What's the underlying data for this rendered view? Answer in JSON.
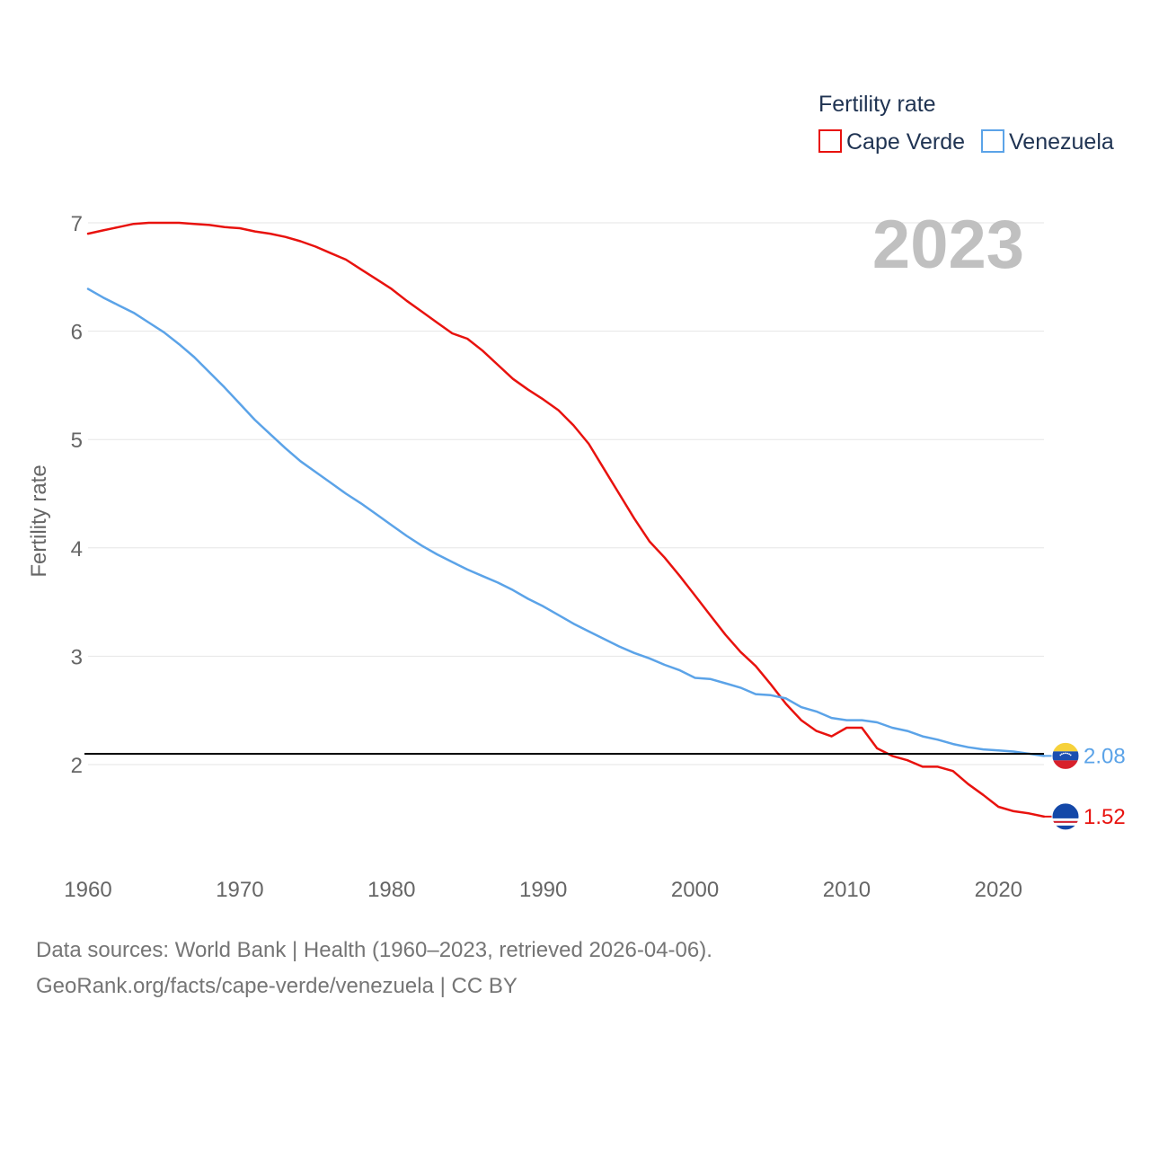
{
  "chart_data": {
    "type": "line",
    "ylabel": "Fertility rate",
    "legend_title": "Fertility rate",
    "legend_position": "top-right",
    "current_year_label": "2023",
    "xlim": [
      1960,
      2023
    ],
    "ylim": [
      1.05,
      7.2
    ],
    "x_ticks": [
      1960,
      1970,
      1980,
      1990,
      2000,
      2010,
      2020
    ],
    "y_ticks": [
      2,
      3,
      4,
      5,
      6,
      7
    ],
    "grid": true,
    "reference_line": {
      "value": 2.1,
      "color": "#000000"
    },
    "x": [
      1960,
      1961,
      1962,
      1963,
      1964,
      1965,
      1966,
      1967,
      1968,
      1969,
      1970,
      1971,
      1972,
      1973,
      1974,
      1975,
      1976,
      1977,
      1978,
      1979,
      1980,
      1981,
      1982,
      1983,
      1984,
      1985,
      1986,
      1987,
      1988,
      1989,
      1990,
      1991,
      1992,
      1993,
      1994,
      1995,
      1996,
      1997,
      1998,
      1999,
      2000,
      2001,
      2002,
      2003,
      2004,
      2005,
      2006,
      2007,
      2008,
      2009,
      2010,
      2011,
      2012,
      2013,
      2014,
      2015,
      2016,
      2017,
      2018,
      2019,
      2020,
      2021,
      2022,
      2023
    ],
    "series": [
      {
        "name": "Cape Verde",
        "color": "#e8120e",
        "end_label": "1.52",
        "values": [
          6.9,
          6.93,
          6.96,
          6.99,
          7.0,
          7.0,
          7.0,
          6.99,
          6.98,
          6.96,
          6.95,
          6.92,
          6.9,
          6.87,
          6.83,
          6.78,
          6.72,
          6.66,
          6.57,
          6.48,
          6.39,
          6.28,
          6.18,
          6.08,
          5.98,
          5.93,
          5.82,
          5.69,
          5.56,
          5.46,
          5.37,
          5.27,
          5.13,
          4.96,
          4.73,
          4.5,
          4.27,
          4.06,
          3.91,
          3.74,
          3.56,
          3.38,
          3.2,
          3.04,
          2.91,
          2.74,
          2.56,
          2.41,
          2.31,
          2.26,
          2.34,
          2.34,
          2.15,
          2.08,
          2.04,
          1.98,
          1.98,
          1.94,
          1.82,
          1.72,
          1.61,
          1.57,
          1.55,
          1.52
        ]
      },
      {
        "name": "Venezuela",
        "color": "#5ba3e8",
        "end_label": "2.08",
        "values": [
          6.39,
          6.31,
          6.24,
          6.17,
          6.08,
          5.99,
          5.88,
          5.76,
          5.62,
          5.48,
          5.33,
          5.18,
          5.05,
          4.92,
          4.8,
          4.7,
          4.6,
          4.5,
          4.41,
          4.31,
          4.21,
          4.11,
          4.02,
          3.94,
          3.87,
          3.8,
          3.74,
          3.68,
          3.61,
          3.53,
          3.46,
          3.38,
          3.3,
          3.23,
          3.16,
          3.09,
          3.03,
          2.98,
          2.92,
          2.87,
          2.8,
          2.79,
          2.75,
          2.71,
          2.65,
          2.64,
          2.61,
          2.53,
          2.49,
          2.43,
          2.41,
          2.41,
          2.39,
          2.34,
          2.31,
          2.26,
          2.23,
          2.19,
          2.16,
          2.14,
          2.13,
          2.12,
          2.1,
          2.08
        ]
      }
    ]
  },
  "sources": {
    "line1": "Data sources: World Bank | Health (1960–2023, retrieved 2026-04-06).",
    "line2": "GeoRank.org/facts/cape-verde/venezuela | CC BY"
  }
}
